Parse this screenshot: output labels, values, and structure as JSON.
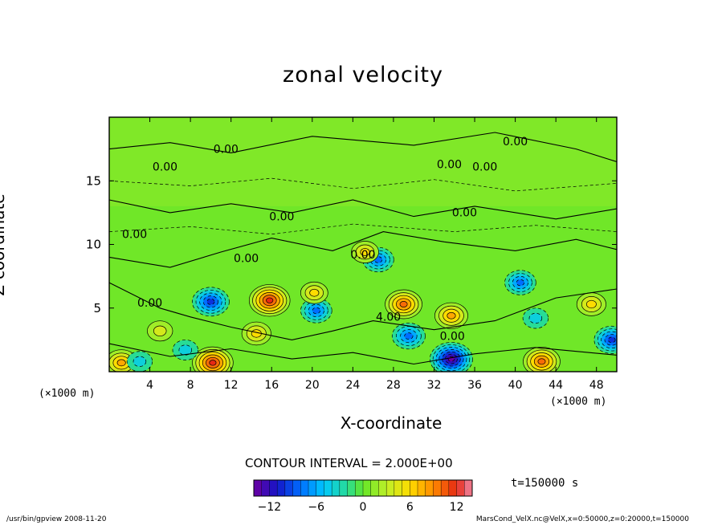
{
  "chart_data": {
    "type": "heatmap",
    "title": "zonal velocity",
    "xlabel": "X-coordinate",
    "ylabel": "Z-coordinate",
    "x_unit": "(×1000 m)",
    "y_unit": "(×1000 m)",
    "x_ticks": [
      "4",
      "8",
      "12",
      "16",
      "20",
      "24",
      "28",
      "32",
      "36",
      "40",
      "44",
      "48"
    ],
    "y_ticks": [
      "5",
      "10",
      "15"
    ],
    "xlim": [
      0,
      50
    ],
    "ylim": [
      0,
      20
    ],
    "contour_interval_text": "CONTOUR INTERVAL = 2.000E+00",
    "contour_labels": [
      "0.00",
      "0.00",
      "0.00",
      "0.00",
      "0.00",
      "0.00",
      "0.00",
      "0.00",
      "0.00",
      "0.00",
      "0.00",
      "4.00",
      "0.00"
    ],
    "colorbar": {
      "min": -14,
      "max": 14,
      "tick_labels": [
        "−12",
        "−6",
        "0",
        "6",
        "12"
      ],
      "tick_values": [
        -12,
        -6,
        0,
        6,
        12
      ]
    },
    "time_label": "t=150000 s",
    "features": [
      {
        "x": 10,
        "z": 5.5,
        "value": -10
      },
      {
        "x": 15.8,
        "z": 5.6,
        "value": 12
      },
      {
        "x": 14.5,
        "z": 3.0,
        "value": 6
      },
      {
        "x": 20.4,
        "z": 4.8,
        "value": -7
      },
      {
        "x": 20.2,
        "z": 6.2,
        "value": 5
      },
      {
        "x": 26.5,
        "z": 8.8,
        "value": -7
      },
      {
        "x": 25.2,
        "z": 9.4,
        "value": 5
      },
      {
        "x": 29.0,
        "z": 5.3,
        "value": 10
      },
      {
        "x": 29.5,
        "z": 2.8,
        "value": -8
      },
      {
        "x": 33.7,
        "z": 4.4,
        "value": 8
      },
      {
        "x": 33.7,
        "z": 1.0,
        "value": -13
      },
      {
        "x": 40.5,
        "z": 7.0,
        "value": -7
      },
      {
        "x": 42.0,
        "z": 4.2,
        "value": -4
      },
      {
        "x": 42.6,
        "z": 0.8,
        "value": 10
      },
      {
        "x": 49.5,
        "z": 2.5,
        "value": -9
      },
      {
        "x": 47.5,
        "z": 5.3,
        "value": 6
      },
      {
        "x": 10.2,
        "z": 0.7,
        "value": 12
      },
      {
        "x": 1.2,
        "z": 0.7,
        "value": 8
      },
      {
        "x": 5.0,
        "z": 3.2,
        "value": 4
      },
      {
        "x": 7.5,
        "z": 1.7,
        "value": -4
      },
      {
        "x": 3.0,
        "z": 0.8,
        "value": -4
      }
    ]
  },
  "footer": {
    "left": "/usr/bin/gpview   2008-11-20",
    "right": "MarsCond_VelX.nc@VelX,x=0:50000,z=0:20000,t=150000"
  }
}
